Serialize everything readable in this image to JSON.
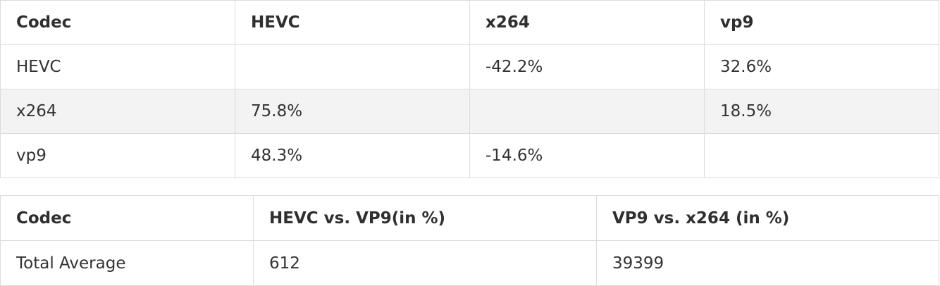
{
  "matrix_table": {
    "header": [
      "Codec",
      "HEVC",
      "x264",
      "vp9"
    ],
    "rows": [
      [
        "HEVC",
        "",
        "-42.2%",
        "32.6%"
      ],
      [
        "x264",
        "75.8%",
        "",
        "18.5%"
      ],
      [
        "vp9",
        "48.3%",
        "-14.6%",
        ""
      ]
    ]
  },
  "average_table": {
    "header": [
      "Codec",
      "HEVC vs. VP9(in %)",
      "VP9 vs. x264 (in %)"
    ],
    "rows": [
      [
        "Total Average",
        "612",
        "39399"
      ]
    ]
  }
}
